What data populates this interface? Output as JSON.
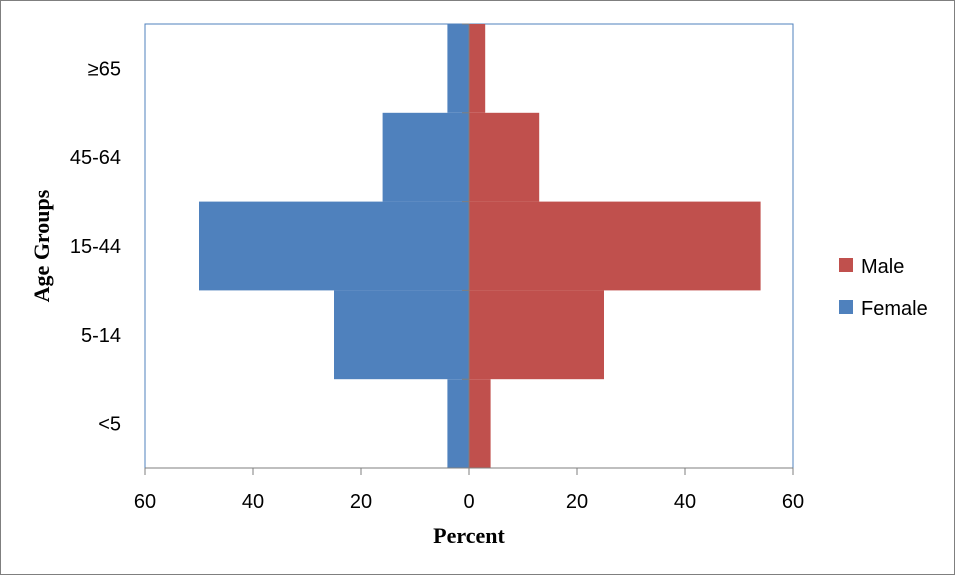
{
  "chart_data": {
    "type": "bar",
    "orientation": "horizontal",
    "layout": "population-pyramid",
    "title": "",
    "xlabel": "Percent",
    "ylabel": "Age Groups",
    "xlim": [
      -60,
      60
    ],
    "x_ticks": [
      -60,
      -40,
      -20,
      0,
      20,
      40,
      60
    ],
    "x_tick_labels": [
      "60",
      "40",
      "20",
      "0",
      "20",
      "40",
      "60"
    ],
    "categories": [
      "<5",
      "5-14",
      "15-44",
      "45-64",
      "≥65"
    ],
    "series": [
      {
        "name": "Male",
        "color": "#c0504d",
        "values": [
          4,
          25,
          54,
          13,
          3
        ]
      },
      {
        "name": "Female",
        "color": "#4f81bd",
        "values": [
          4,
          25,
          50,
          16,
          4
        ]
      }
    ],
    "legend": {
      "position": "right",
      "items": [
        "Male",
        "Female"
      ]
    },
    "grid": false
  }
}
